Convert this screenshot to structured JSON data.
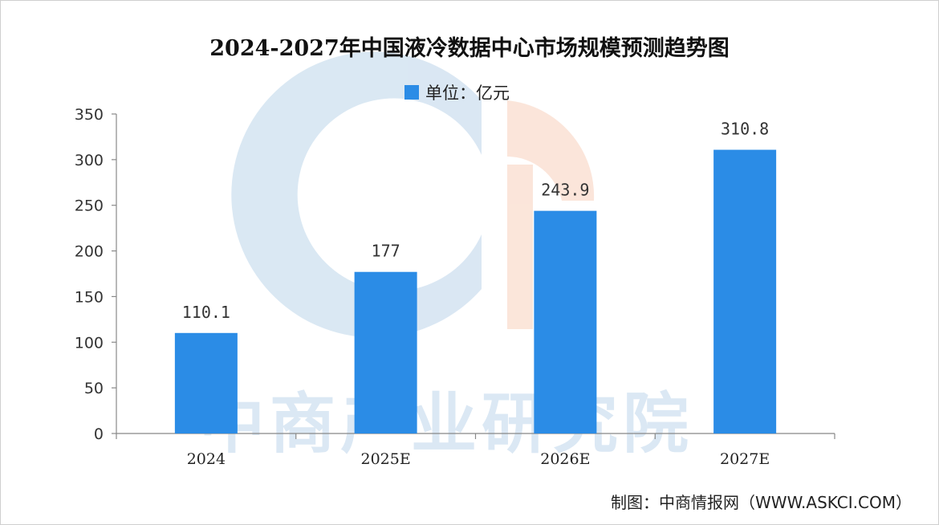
{
  "chart_data": {
    "type": "bar",
    "title": "2024-2027年中国液冷数据中心市场规模预测趋势图",
    "legend": "单位：亿元",
    "categories": [
      "2024",
      "2025E",
      "2026E",
      "2027E"
    ],
    "values": [
      110.1,
      177,
      243.9,
      310.8
    ],
    "value_labels": [
      "110.1",
      "177",
      "243.9",
      "310.8"
    ],
    "ylim": [
      0,
      350
    ],
    "yticks": [
      0,
      50,
      100,
      150,
      200,
      250,
      300,
      350
    ],
    "bar_color": "#2b8ce6",
    "grid": false,
    "legend_position": "top-center"
  },
  "watermark": "中商产业研究院",
  "credit": "制图：中商情报网（WWW.ASKCI.COM）"
}
